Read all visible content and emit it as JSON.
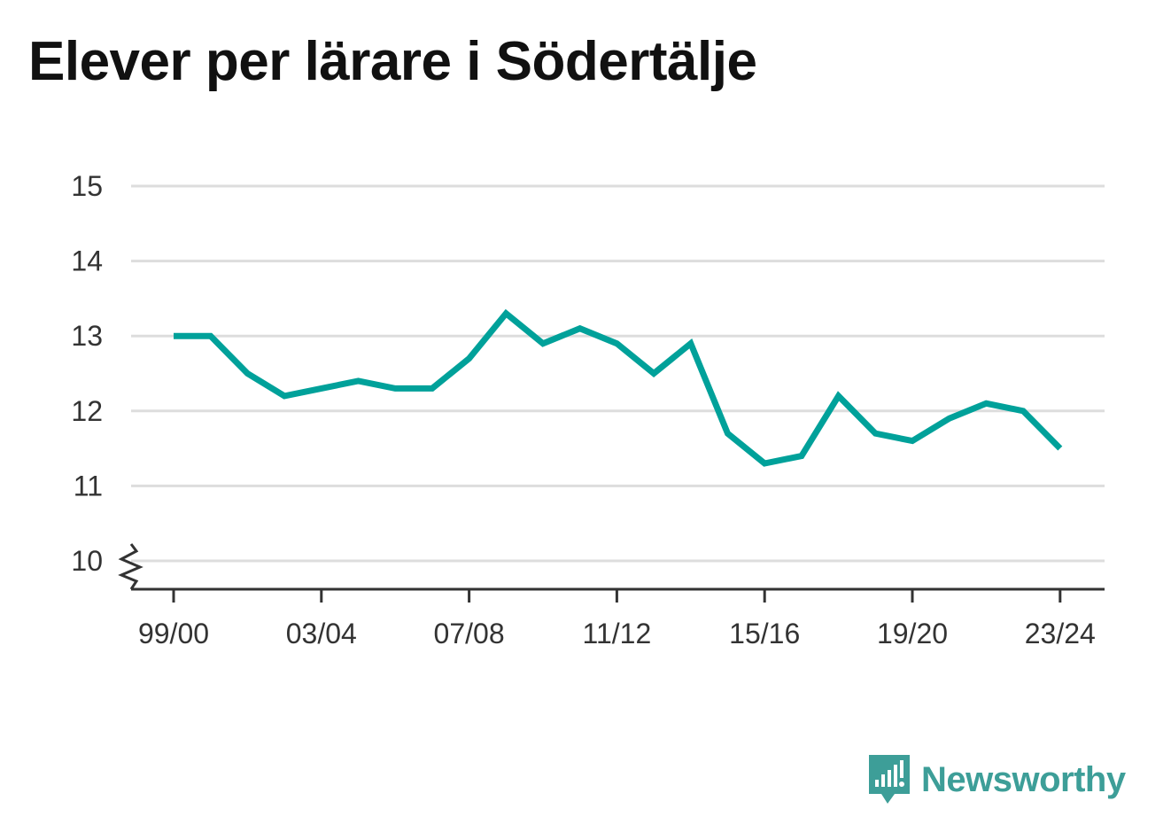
{
  "chart_data": {
    "type": "line",
    "title": "Elever per lärare i Södertälje",
    "xlabel": "",
    "ylabel": "",
    "x": [
      "99/00",
      "00/01",
      "01/02",
      "02/03",
      "03/04",
      "04/05",
      "05/06",
      "06/07",
      "07/08",
      "08/09",
      "09/10",
      "10/11",
      "11/12",
      "12/13",
      "13/14",
      "14/15",
      "15/16",
      "16/17",
      "17/18",
      "18/19",
      "19/20",
      "20/21",
      "21/22",
      "22/23",
      "23/24"
    ],
    "x_tick_labels": [
      "99/00",
      "03/04",
      "07/08",
      "11/12",
      "15/16",
      "19/20",
      "23/24"
    ],
    "y_tick_labels": [
      "10",
      "11",
      "12",
      "13",
      "14",
      "15"
    ],
    "ylim": [
      10,
      15
    ],
    "grid": "horizontal",
    "axis_break": true,
    "series": [
      {
        "values": [
          13.0,
          13.0,
          12.5,
          12.2,
          12.3,
          12.4,
          12.3,
          12.3,
          12.7,
          13.3,
          12.9,
          13.1,
          12.9,
          12.5,
          12.9,
          11.7,
          11.3,
          11.4,
          12.2,
          11.7,
          11.6,
          11.9,
          12.1,
          12.0,
          11.5
        ],
        "color": "#00a19a"
      }
    ]
  },
  "brand": {
    "name": "Newsworthy",
    "color": "#3d9e98",
    "icon": "newsworthy-logo-icon"
  },
  "colors": {
    "grid": "#dddddd",
    "axis": "#333333",
    "text": "#111111"
  }
}
